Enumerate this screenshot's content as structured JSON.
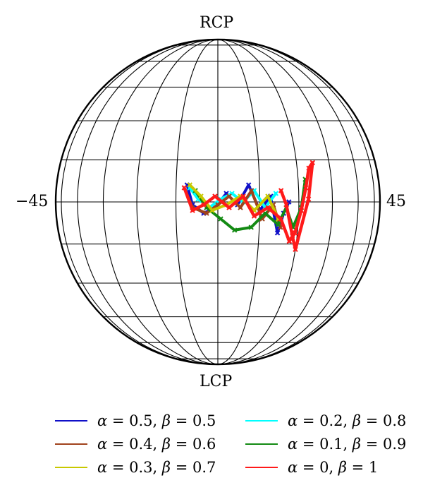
{
  "labels": {
    "top": "RCP",
    "bottom": "LCP",
    "left": "−45",
    "right": "45"
  },
  "legend": [
    {
      "alpha": "0.5",
      "beta": "0.5",
      "color": "#1010c8"
    },
    {
      "alpha": "0.2",
      "beta": "0.8",
      "color": "#00ffff"
    },
    {
      "alpha": "0.4",
      "beta": "0.6",
      "color": "#a0431c"
    },
    {
      "alpha": "0.1",
      "beta": "0.9",
      "color": "#138a13"
    },
    {
      "alpha": "0.3",
      "beta": "0.7",
      "color": "#c8c800"
    },
    {
      "alpha": "0",
      "beta": "1",
      "color": "#ff1a1a"
    }
  ],
  "legend_symbols": {
    "alpha": "α",
    "beta": "β",
    "eq": " = ",
    "sep": ", "
  },
  "traces": [
    {
      "name": "α = 0.5, β = 0.5",
      "color": "#1010c8",
      "points": [
        [
          -11,
          6
        ],
        [
          -9,
          -1
        ],
        [
          -5,
          -4
        ],
        [
          -1,
          -2
        ],
        [
          3,
          3
        ],
        [
          7,
          -1
        ],
        [
          11,
          6
        ],
        [
          15,
          -3
        ],
        [
          19,
          2
        ],
        [
          22,
          -11
        ],
        [
          24,
          -4
        ],
        [
          26,
          0
        ]
      ]
    },
    {
      "name": "α = 0.2, β = 0.8",
      "color": "#00ffff",
      "points": [
        [
          -10,
          5
        ],
        [
          -7,
          1
        ],
        [
          -3,
          -2
        ],
        [
          1,
          1
        ],
        [
          5,
          3
        ],
        [
          9,
          0
        ],
        [
          13,
          4
        ],
        [
          17,
          -2
        ],
        [
          21,
          3
        ]
      ]
    },
    {
      "name": "α = 0.4, β = 0.6",
      "color": "#a0431c",
      "points": [
        [
          -12,
          5
        ],
        [
          -9,
          -2
        ],
        [
          -4,
          -4
        ],
        [
          0,
          -1
        ],
        [
          4,
          2
        ],
        [
          8,
          -2
        ],
        [
          12,
          4
        ],
        [
          16,
          -6
        ],
        [
          20,
          -1
        ],
        [
          23,
          -9
        ]
      ]
    },
    {
      "name": "α = 0.1, β = 0.9",
      "color": "#138a13",
      "points": [
        [
          -8,
          4
        ],
        [
          -4,
          -2
        ],
        [
          1,
          -6
        ],
        [
          6,
          -10
        ],
        [
          12,
          -9
        ],
        [
          17,
          -4
        ],
        [
          22,
          -8
        ],
        [
          25,
          -2
        ],
        [
          28,
          -9
        ],
        [
          31,
          -2
        ],
        [
          33,
          8
        ]
      ]
    },
    {
      "name": "α = 0.3, β = 0.7",
      "color": "#c8c800",
      "points": [
        [
          -10,
          6
        ],
        [
          -6,
          2
        ],
        [
          -2,
          -3
        ],
        [
          3,
          -1
        ],
        [
          8,
          2
        ],
        [
          13,
          -3
        ],
        [
          18,
          2
        ],
        [
          22,
          -6
        ]
      ]
    },
    {
      "name": "α = 0, β = 1",
      "color": "#ff1a1a",
      "points": [
        [
          -12,
          5
        ],
        [
          -9,
          -3
        ],
        [
          -5,
          -1
        ],
        [
          -1,
          2
        ],
        [
          4,
          -2
        ],
        [
          9,
          2
        ],
        [
          13,
          -5
        ],
        [
          18,
          -2
        ],
        [
          23,
          -6
        ],
        [
          27,
          -14
        ],
        [
          29,
          -11
        ],
        [
          31,
          -3
        ],
        [
          33,
          5
        ],
        [
          35,
          12
        ],
        [
          37,
          14
        ],
        [
          34,
          1
        ],
        [
          30,
          -17
        ],
        [
          28,
          -12
        ],
        [
          25,
          -1
        ],
        [
          23,
          4
        ]
      ]
    }
  ]
}
